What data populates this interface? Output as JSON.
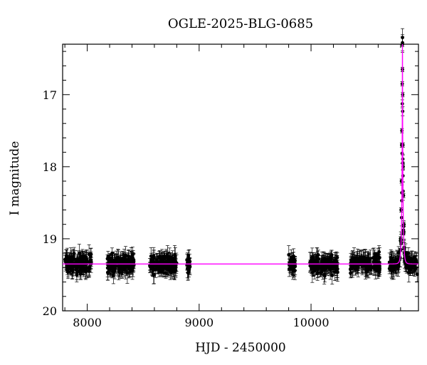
{
  "chart_data": {
    "type": "scatter",
    "title": "OGLE-2025-BLG-0685",
    "xlabel": "HJD - 2450000",
    "ylabel": "I magnitude",
    "xlim": [
      7780,
      10960
    ],
    "ylim": [
      20.0,
      16.3
    ],
    "y_inverted": true,
    "grid": false,
    "x_ticks": [
      "8000",
      "9000",
      "10000"
    ],
    "y_ticks": [
      "17",
      "18",
      "19",
      "20"
    ],
    "baseline_mag": 19.35,
    "seasons": [
      {
        "start": 7800,
        "end": 8040
      },
      {
        "start": 8180,
        "end": 8420
      },
      {
        "start": 8550,
        "end": 8800
      },
      {
        "start": 8890,
        "end": 8920
      },
      {
        "start": 9800,
        "end": 9860
      },
      {
        "start": 9990,
        "end": 10240
      },
      {
        "start": 10350,
        "end": 10620
      },
      {
        "start": 10700,
        "end": 10950
      }
    ],
    "event_points": [
      {
        "x": 10800,
        "y": 19.0
      },
      {
        "x": 10805,
        "y": 18.6
      },
      {
        "x": 10808,
        "y": 18.2
      },
      {
        "x": 10810,
        "y": 17.7
      },
      {
        "x": 10812,
        "y": 17.5
      },
      {
        "x": 10815,
        "y": 16.85
      },
      {
        "x": 10817,
        "y": 16.65
      },
      {
        "x": 10819,
        "y": 17.0
      },
      {
        "x": 10821,
        "y": 17.7
      },
      {
        "x": 10823,
        "y": 18.0
      },
      {
        "x": 10826,
        "y": 18.4
      },
      {
        "x": 10830,
        "y": 18.8
      }
    ],
    "model": {
      "type": "microlensing_fit",
      "t0": 10817,
      "peak_mag": 16.3,
      "baseline_mag": 19.35
    },
    "colors": {
      "points": "#000000",
      "model": "#ff00ff"
    }
  }
}
